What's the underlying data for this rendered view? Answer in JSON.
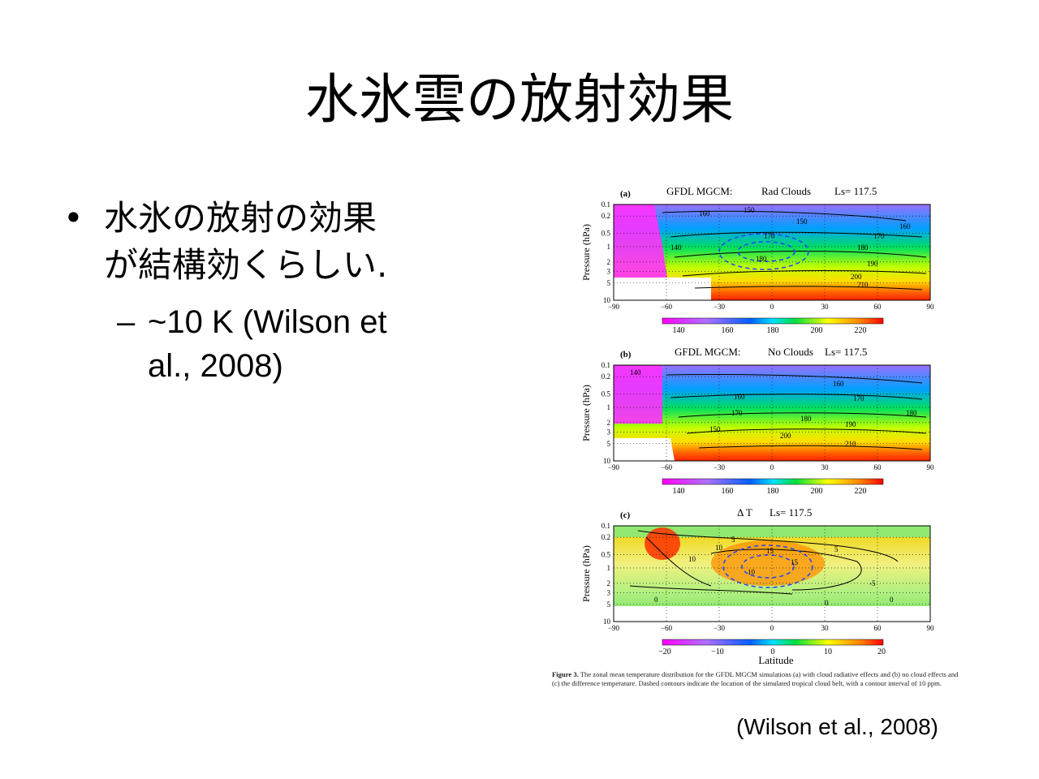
{
  "title": "水氷雲の放射効果",
  "bullet1": {
    "line1": "水氷の放射の効果",
    "line2": "が結構効くらしい."
  },
  "bullet2": {
    "line1": "~10 K (Wilson et",
    "line2": "al., 2008)"
  },
  "bullet_glyph": "•",
  "dash_glyph": "–",
  "citation": "(Wilson et al., 2008)",
  "figure": {
    "panels": [
      {
        "tag": "(a)",
        "title_model": "GFDL MGCM:",
        "title_case": "Rad Clouds",
        "title_ls": "Ls= 117.5",
        "contour_labels": [
          "150",
          "160",
          "170",
          "180",
          "190",
          "200",
          "210",
          "140",
          "180",
          "170",
          "160",
          "150"
        ],
        "colorbar_ticks": [
          "140",
          "160",
          "180",
          "200",
          "220"
        ]
      },
      {
        "tag": "(b)",
        "title_model": "GFDL MGCM:",
        "title_case": "No Clouds",
        "title_ls": "Ls= 117.5",
        "contour_labels": [
          "140",
          "160",
          "170",
          "180",
          "190",
          "200",
          "210",
          "180",
          "170",
          "160",
          "150"
        ],
        "colorbar_ticks": [
          "140",
          "160",
          "180",
          "200",
          "220"
        ]
      },
      {
        "tag": "(c)",
        "title_model": "Δ T",
        "title_case": "",
        "title_ls": "Ls= 117.5",
        "contour_labels": [
          "10",
          "5",
          "10",
          "15",
          "0",
          "-5",
          "0",
          "10",
          "5",
          "15",
          "0"
        ],
        "colorbar_ticks": [
          "−20",
          "−10",
          "0",
          "10",
          "20"
        ],
        "xlabel": "Latitude"
      }
    ],
    "ylabel": "Pressure (hPa)",
    "y_ticks": [
      "0.1",
      "0.2",
      "0.5",
      "1",
      "2",
      "3",
      "5",
      "10"
    ],
    "x_ticks": [
      "−90",
      "−60",
      "−30",
      "0",
      "30",
      "60",
      "90"
    ],
    "caption_label": "Figure 3.",
    "caption_text": "The zonal mean temperature distribution for the GFDL MGCM simulations (a) with cloud radiative effects and (b) no cloud effects and (c) the difference temperature. Dashed contours indicate the location of the simulated tropical cloud belt, with a contour interval of 10 ppm."
  }
}
